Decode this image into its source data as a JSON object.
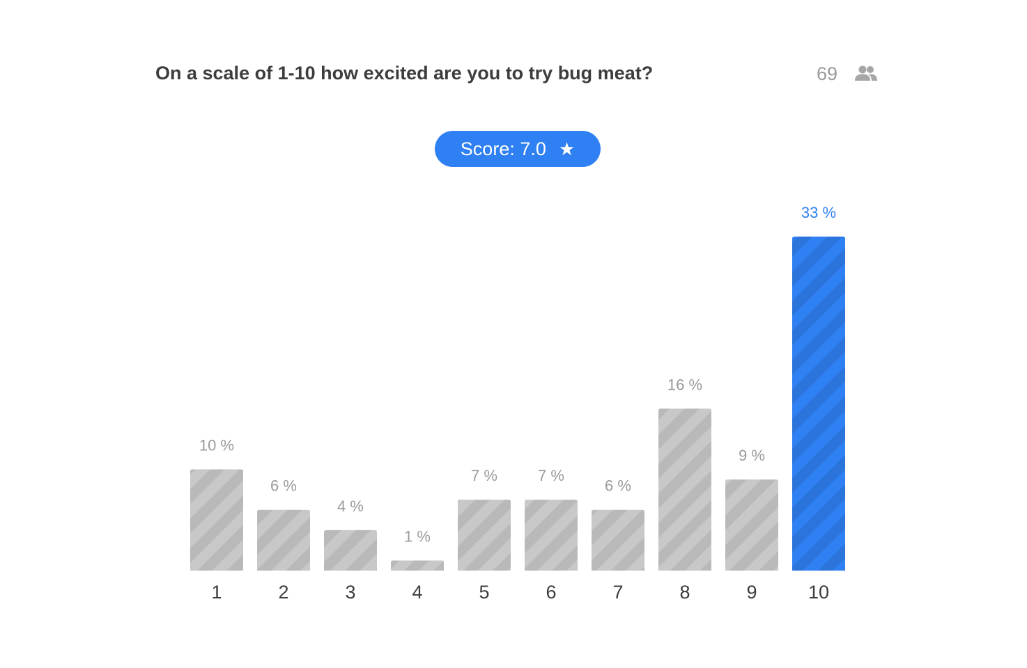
{
  "question": "On a scale of 1-10 how excited are you to try bug meat?",
  "participants": {
    "count": "69",
    "icon": "people-icon"
  },
  "score": {
    "label": "Score: 7.0",
    "icon": "star-icon",
    "symbol": "★"
  },
  "colors": {
    "accent": "#2f80f2",
    "bar": "#c8c8c8",
    "bar_stripe": "#b9b9b9",
    "highlight_stripe": "#2a74dc",
    "label_gray": "#9a9a9a"
  },
  "chart_data": {
    "type": "bar",
    "categories": [
      "1",
      "2",
      "3",
      "4",
      "5",
      "6",
      "7",
      "8",
      "9",
      "10"
    ],
    "values": [
      10,
      6,
      4,
      1,
      7,
      7,
      6,
      16,
      9,
      33
    ],
    "value_labels": [
      "10 %",
      "6 %",
      "4 %",
      "1 %",
      "7 %",
      "7 %",
      "6 %",
      "16 %",
      "9 %",
      "33 %"
    ],
    "highlight_index": 9,
    "ylim": [
      0,
      33
    ],
    "xlabel": "",
    "ylabel": "",
    "grid": false
  }
}
